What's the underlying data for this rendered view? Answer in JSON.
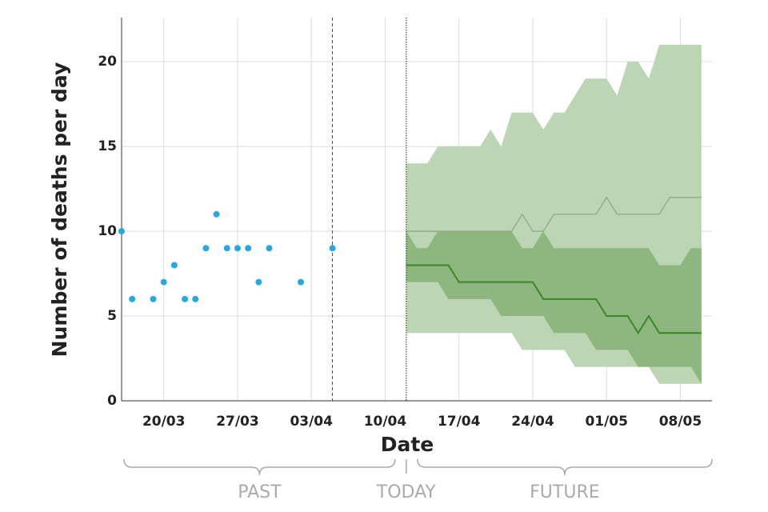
{
  "chart_data": {
    "type": "scatter",
    "ylabel": "Number of deaths per day",
    "xlabel": "Date",
    "xlim": [
      "16/03",
      "11/05"
    ],
    "ylim": [
      0,
      22.6
    ],
    "xticks": [
      "20/03",
      "27/03",
      "03/04",
      "10/04",
      "17/04",
      "24/04",
      "01/05",
      "08/05"
    ],
    "yticks": [
      0,
      5,
      10,
      15,
      20
    ],
    "grid": true,
    "points": {
      "color": "#29a8e0",
      "x": [
        "16/03",
        "17/03",
        "19/03",
        "20/03",
        "21/03",
        "22/03",
        "23/03",
        "24/03",
        "25/03",
        "26/03",
        "27/03",
        "28/03",
        "29/03",
        "30/03",
        "02/04",
        "05/04"
      ],
      "values": [
        10,
        6,
        6,
        7,
        8,
        6,
        6,
        9,
        11,
        9,
        9,
        9,
        7,
        9,
        7,
        9
      ]
    },
    "dashed_line": "05/04",
    "today_line": "12/04",
    "forecast": {
      "x": [
        "12/04",
        "13/04",
        "14/04",
        "15/04",
        "16/04",
        "17/04",
        "18/04",
        "19/04",
        "20/04",
        "21/04",
        "22/04",
        "23/04",
        "24/04",
        "25/04",
        "26/04",
        "27/04",
        "28/04",
        "29/04",
        "30/04",
        "01/05",
        "02/05",
        "03/05",
        "04/05",
        "05/05",
        "06/05",
        "07/05",
        "08/05",
        "09/05",
        "10/05"
      ],
      "outer_color": "#bcd5b5",
      "inner_color": "#8db77f",
      "median_color": "#3a862a",
      "upper_line_color": "#8fa889",
      "outer_upper": [
        14,
        14,
        14,
        15,
        15,
        15,
        15,
        15,
        16,
        15,
        17,
        17,
        17,
        16,
        17,
        17,
        18,
        19,
        19,
        19,
        18,
        20,
        20,
        19,
        21,
        21,
        21,
        21,
        21
      ],
      "outer_lower": [
        4,
        4,
        4,
        4,
        4,
        4,
        4,
        4,
        4,
        4,
        4,
        3,
        3,
        3,
        3,
        3,
        2,
        2,
        2,
        2,
        2,
        2,
        2,
        2,
        1,
        1,
        1,
        1,
        1
      ],
      "inner_upper": [
        10,
        9,
        9,
        10,
        10,
        10,
        10,
        10,
        10,
        10,
        10,
        9,
        9,
        10,
        9,
        9,
        9,
        9,
        9,
        9,
        9,
        9,
        9,
        9,
        8,
        8,
        8,
        9,
        9
      ],
      "inner_lower": [
        7,
        7,
        7,
        7,
        6,
        6,
        6,
        6,
        6,
        5,
        5,
        5,
        5,
        5,
        4,
        4,
        4,
        4,
        3,
        3,
        3,
        3,
        2,
        2,
        2,
        2,
        2,
        2,
        1
      ],
      "median": [
        8,
        8,
        8,
        8,
        8,
        7,
        7,
        7,
        7,
        7,
        7,
        7,
        7,
        6,
        6,
        6,
        6,
        6,
        6,
        5,
        5,
        5,
        4,
        5,
        4,
        4,
        4,
        4,
        4
      ],
      "upper_line": [
        10,
        10,
        10,
        10,
        10,
        10,
        10,
        10,
        10,
        10,
        10,
        11,
        10,
        10,
        11,
        11,
        11,
        11,
        11,
        12,
        11,
        11,
        11,
        11,
        11,
        12,
        12,
        12,
        12
      ]
    },
    "annotations": [
      "PAST",
      "TODAY",
      "FUTURE"
    ]
  }
}
